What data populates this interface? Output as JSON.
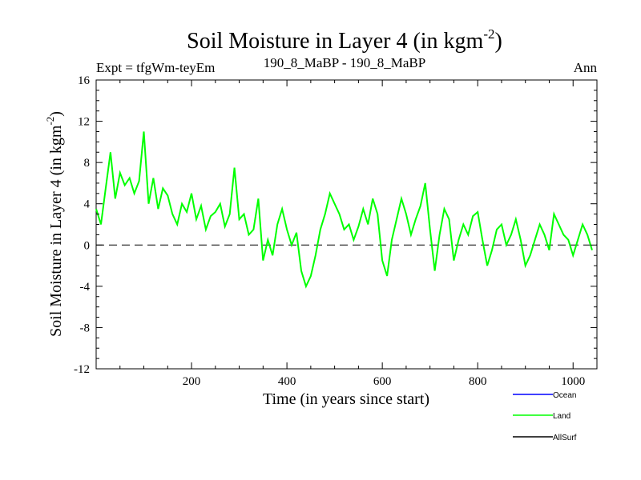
{
  "chart_data": {
    "type": "line",
    "title": "Soil Moisture in Layer 4 (in kgm",
    "title_sup": "-2",
    "title_close": ")",
    "subtitle_left": "Expt = tfgWm-teyEm",
    "subtitle_center": "190_8_MaBP - 190_8_MaBP",
    "subtitle_right": "Ann",
    "xlabel": "Time (in years since start)",
    "ylabel": "Soil Moisture in Layer 4 (in kgm",
    "ylabel_sup": "-2",
    "ylabel_close": ")",
    "xlim": [
      0,
      1050
    ],
    "ylim": [
      -12,
      16
    ],
    "xticks": [
      200,
      400,
      600,
      800,
      1000
    ],
    "yticks": [
      16,
      12,
      8,
      4,
      0,
      -4,
      -8,
      -12
    ],
    "zero_line": 0,
    "legend": [
      {
        "name": "Ocean",
        "color": "#0000ff"
      },
      {
        "name": "Land",
        "color": "#00ff00"
      },
      {
        "name": "AllSurf",
        "color": "#000000"
      }
    ],
    "series": [
      {
        "name": "Land",
        "color": "#00ff00",
        "x_start": 0,
        "x_step": 10,
        "values": [
          3.5,
          2.0,
          5.5,
          9.0,
          4.5,
          7.0,
          5.8,
          6.5,
          5.0,
          6.2,
          11.0,
          4.0,
          6.5,
          3.5,
          5.5,
          4.8,
          3.0,
          2.0,
          4.0,
          3.2,
          5.0,
          2.5,
          3.8,
          1.5,
          2.8,
          3.2,
          4.0,
          1.8,
          3.0,
          7.5,
          2.5,
          3.0,
          1.0,
          1.5,
          4.5,
          -1.5,
          0.5,
          -1.0,
          2.0,
          3.5,
          1.5,
          0.0,
          1.2,
          -2.5,
          -4.0,
          -3.0,
          -1.0,
          1.5,
          3.0,
          5.0,
          4.0,
          3.0,
          1.5,
          2.0,
          0.5,
          1.8,
          3.5,
          2.0,
          4.5,
          3.0,
          -1.5,
          -3.0,
          0.5,
          2.5,
          4.5,
          3.0,
          1.0,
          2.5,
          3.8,
          6.0,
          1.5,
          -2.5,
          1.0,
          3.5,
          2.5,
          -1.5,
          0.5,
          2.0,
          1.0,
          2.8,
          3.2,
          0.5,
          -2.0,
          -0.5,
          1.5,
          2.0,
          0.0,
          1.0,
          2.5,
          0.5,
          -2.0,
          -1.0,
          0.5,
          2.0,
          1.0,
          -0.5,
          3.0,
          2.0,
          1.0,
          0.5,
          -1.0,
          0.5,
          2.0,
          1.0,
          -0.5
        ]
      }
    ]
  }
}
